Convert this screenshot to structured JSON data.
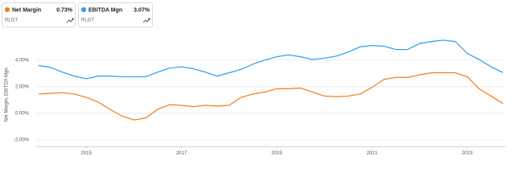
{
  "chart_data": {
    "type": "line",
    "y_label": "Net Margin, EBITDA Mgn",
    "x": [
      2014,
      2014.25,
      2014.5,
      2014.75,
      2015,
      2015.25,
      2015.5,
      2015.75,
      2016,
      2016.25,
      2016.5,
      2016.75,
      2017,
      2017.25,
      2017.5,
      2017.75,
      2018,
      2018.25,
      2018.5,
      2018.75,
      2019,
      2019.25,
      2019.5,
      2019.75,
      2020,
      2020.25,
      2020.5,
      2020.75,
      2021,
      2021.25,
      2021.5,
      2021.75,
      2022,
      2022.25,
      2022.5,
      2022.75,
      2023,
      2023.25,
      2023.5,
      2023.75
    ],
    "xlim": [
      2013.95,
      2023.8
    ],
    "xticks": [
      2015,
      2017,
      2019,
      2021,
      2023
    ],
    "ylim": [
      -2.5,
      5.8
    ],
    "yticks": [
      {
        "value": -2,
        "label": "-2.00%"
      },
      {
        "value": 0,
        "label": "0.00%"
      },
      {
        "value": 2,
        "label": "2.00%"
      },
      {
        "value": 4,
        "label": "4.00%"
      }
    ],
    "grid": true,
    "series": [
      {
        "name": "Net Margin",
        "color": "#f07c1b",
        "legend_value": "0.73%",
        "ticker": "RLGT",
        "values": [
          1.45,
          1.5,
          1.55,
          1.45,
          1.2,
          0.85,
          0.3,
          -0.2,
          -0.5,
          -0.35,
          0.3,
          0.65,
          0.6,
          0.5,
          0.6,
          0.55,
          0.6,
          1.2,
          1.45,
          1.6,
          1.85,
          1.85,
          1.9,
          1.6,
          1.3,
          1.25,
          1.3,
          1.45,
          1.95,
          2.55,
          2.7,
          2.7,
          2.9,
          3.05,
          3.05,
          3.05,
          2.75,
          1.85,
          1.3,
          0.73
        ]
      },
      {
        "name": "EBITDA Mgn",
        "color": "#2d9be8",
        "legend_value": "3.07%",
        "ticker": "RLGT",
        "values": [
          3.6,
          3.45,
          3.1,
          2.8,
          2.6,
          2.8,
          2.8,
          2.75,
          2.75,
          2.75,
          3.1,
          3.4,
          3.5,
          3.35,
          3.1,
          2.8,
          3.05,
          3.3,
          3.7,
          4.0,
          4.25,
          4.4,
          4.25,
          4.05,
          4.15,
          4.3,
          4.6,
          5.0,
          5.1,
          5.05,
          4.8,
          4.8,
          5.25,
          5.4,
          5.5,
          5.4,
          4.5,
          4.05,
          3.5,
          3.07
        ]
      }
    ]
  }
}
